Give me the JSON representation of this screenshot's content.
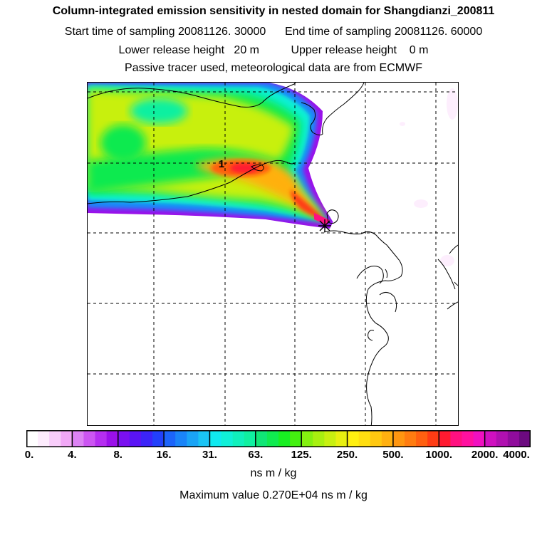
{
  "header": {
    "title": "Column-integrated emission sensitivity in nested domain for Shangdianzi_200811",
    "sampling": "Start time of sampling 20081126. 30000      End time of sampling 20081126. 60000",
    "release": "Lower release height   20 m          Upper release height    0 m",
    "tracer": "Passive tracer used, meteorological data are from ECMWF"
  },
  "map": {
    "marker_label": "1",
    "release_marker": "star-icon"
  },
  "legend": {
    "tick_labels": [
      "0.",
      "4.",
      "8.",
      "16.",
      "31.",
      "63.",
      "125.",
      "250.",
      "500.",
      "1000.",
      "2000.",
      "4000."
    ],
    "colors": [
      "#ffffff",
      "#fdecfd",
      "#f8cdfa",
      "#f1a8f6",
      "#dc82f4",
      "#cc55f2",
      "#b52ef0",
      "#9b10ea",
      "#7a10f0",
      "#5a14f5",
      "#3c24f8",
      "#2240fa",
      "#1c64fa",
      "#1a84f8",
      "#1aa4f6",
      "#1ac4f4",
      "#10eaf0",
      "#10f0d8",
      "#10f0bc",
      "#10f0a0",
      "#10e676",
      "#10ea50",
      "#18ee22",
      "#44f010",
      "#84f010",
      "#a8f010",
      "#c8f010",
      "#e8f010",
      "#fff010",
      "#ffde10",
      "#ffc810",
      "#ffb010",
      "#ff9610",
      "#ff7c10",
      "#ff6010",
      "#ff3c14",
      "#ff1a30",
      "#ff1080",
      "#ff10a0",
      "#f010c0",
      "#d010c0",
      "#b010b0",
      "#900c9c",
      "#6c0a80"
    ],
    "units": "ns m / kg",
    "max_value": "Maximum value  0.270E+04 ns m / kg"
  }
}
